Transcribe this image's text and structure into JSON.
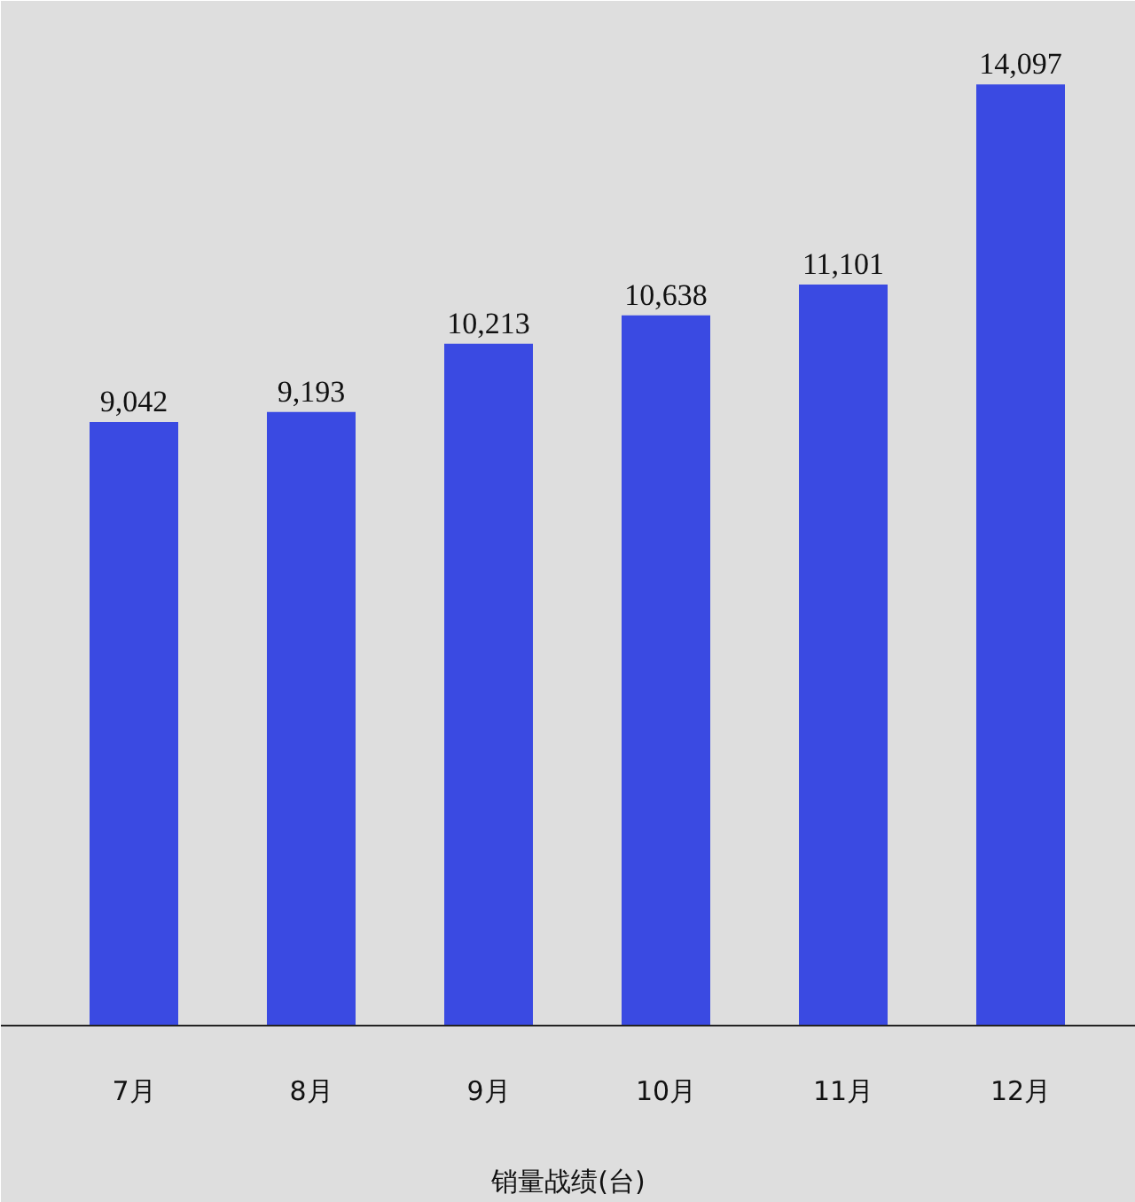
{
  "chart_data": {
    "type": "bar",
    "xlabel": "销量战绩(台)",
    "categories": [
      "7月",
      "8月",
      "9月",
      "10月",
      "11月",
      "12月"
    ],
    "values": [
      9042,
      9193,
      10213,
      10638,
      11101,
      14097
    ],
    "value_labels": [
      "9,042",
      "9,193",
      "10,213",
      "10,638",
      "11,101",
      "14,097"
    ],
    "color": "#3a4ae2",
    "grid": false,
    "tick_labels": "x"
  }
}
